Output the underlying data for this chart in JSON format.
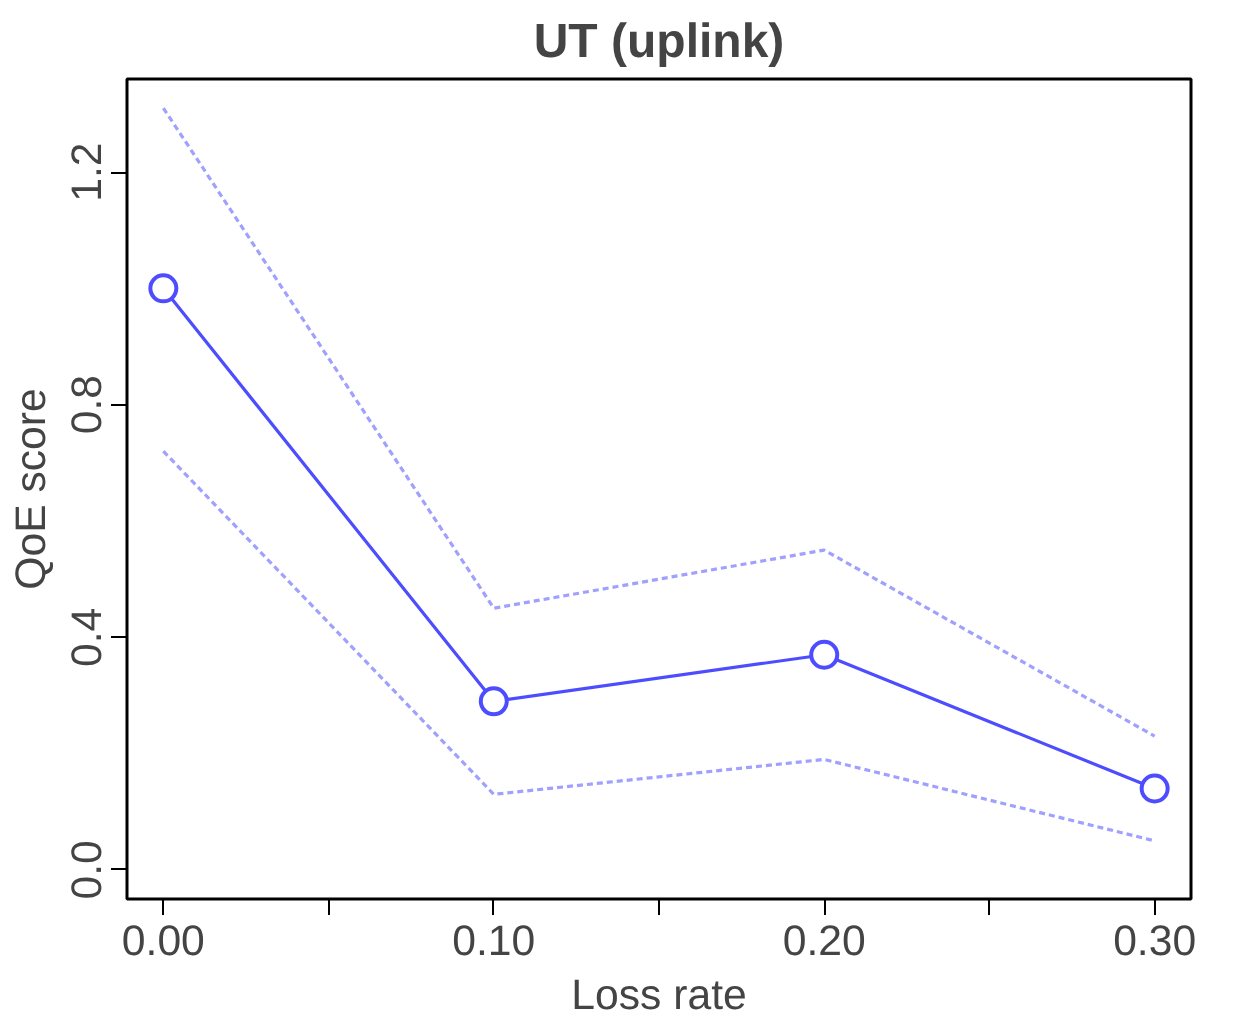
{
  "chart_data": {
    "type": "line",
    "title": "UT (uplink)",
    "xlabel": "Loss rate",
    "ylabel": "QoE score",
    "x": [
      0.0,
      0.1,
      0.2,
      0.3
    ],
    "series": [
      {
        "color": "#a0a0ff",
        "values": [
          1.31,
          0.45,
          0.55,
          0.23
        ],
        "line_style": "dashed",
        "marker": "none"
      },
      {
        "color": "#a0a0ff",
        "values": [
          0.72,
          0.13,
          0.19,
          0.05
        ],
        "line_style": "dashed",
        "marker": "none"
      },
      {
        "color": "#4d4dff",
        "values": [
          1.0,
          0.29,
          0.37,
          0.14
        ]
      }
    ],
    "xlim": [
      -0.011,
      0.311
    ],
    "ylim": [
      -0.05,
      1.36
    ],
    "xticks": [
      {
        "value": 0.0,
        "label": "0.00"
      },
      {
        "value": 0.05,
        "label": null
      },
      {
        "value": 0.1,
        "label": "0.10"
      },
      {
        "value": 0.15,
        "label": null
      },
      {
        "value": 0.2,
        "label": "0.20"
      },
      {
        "value": 0.25,
        "label": null
      },
      {
        "value": 0.3,
        "label": "0.30"
      }
    ],
    "yticks": [
      {
        "value": 0.0,
        "label": "0.0"
      },
      {
        "value": 0.4,
        "label": "0.4"
      },
      {
        "value": 0.8,
        "label": "0.8"
      },
      {
        "value": 1.2,
        "label": "1.2"
      }
    ],
    "marker": "circle",
    "line_style": "solid"
  }
}
